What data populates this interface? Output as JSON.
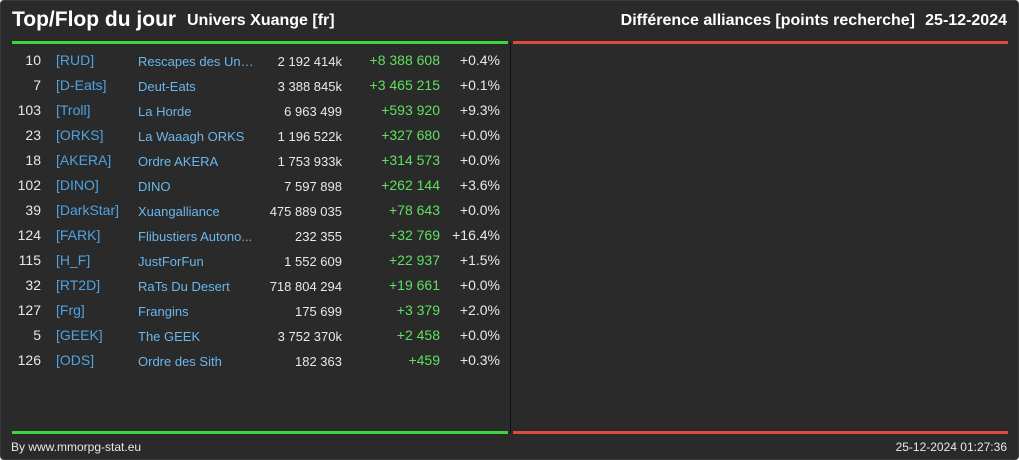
{
  "header": {
    "title": "Top/Flop du jour",
    "subtitle": "Univers Xuange [fr]",
    "category": "Différence alliances [points recherche]",
    "date": "25-12-2024"
  },
  "colors": {
    "top_accent": "#3dd63d",
    "flop_accent": "#e04a3c",
    "tag": "#4fa3e0",
    "gain": "#5fe05f"
  },
  "rows": [
    {
      "rank": "10",
      "tag": "[RUD]",
      "name": "Rescapes des Univ...",
      "points": "2 192 414k",
      "diff": "+8 388 608",
      "pct": "+0.4%"
    },
    {
      "rank": "7",
      "tag": "[D-Eats]",
      "name": "Deut-Eats",
      "points": "3 388 845k",
      "diff": "+3 465 215",
      "pct": "+0.1%"
    },
    {
      "rank": "103",
      "tag": "[Troll]",
      "name": "La Horde",
      "points": "6 963 499",
      "diff": "+593 920",
      "pct": "+9.3%"
    },
    {
      "rank": "23",
      "tag": "[ORKS]",
      "name": "La Waaagh ORKS",
      "points": "1 196 522k",
      "diff": "+327 680",
      "pct": "+0.0%"
    },
    {
      "rank": "18",
      "tag": "[AKERA]",
      "name": "Ordre AKERA",
      "points": "1 753 933k",
      "diff": "+314 573",
      "pct": "+0.0%"
    },
    {
      "rank": "102",
      "tag": "[DINO]",
      "name": "DINO",
      "points": "7 597 898",
      "diff": "+262 144",
      "pct": "+3.6%"
    },
    {
      "rank": "39",
      "tag": "[DarkStar]",
      "name": "Xuangalliance",
      "points": "475 889 035",
      "diff": "+78 643",
      "pct": "+0.0%"
    },
    {
      "rank": "124",
      "tag": "[FARK]",
      "name": "Flibustiers Autono...",
      "points": "232 355",
      "diff": "+32 769",
      "pct": "+16.4%"
    },
    {
      "rank": "115",
      "tag": "[H_F]",
      "name": "JustForFun",
      "points": "1 552 609",
      "diff": "+22 937",
      "pct": "+1.5%"
    },
    {
      "rank": "32",
      "tag": "[RT2D]",
      "name": "RaTs Du Desert",
      "points": "718 804 294",
      "diff": "+19 661",
      "pct": "+0.0%"
    },
    {
      "rank": "127",
      "tag": "[Frg]",
      "name": "Frangins",
      "points": "175 699",
      "diff": "+3 379",
      "pct": "+2.0%"
    },
    {
      "rank": "5",
      "tag": "[GEEK]",
      "name": "The GEEK",
      "points": "3 752 370k",
      "diff": "+2 458",
      "pct": "+0.0%"
    },
    {
      "rank": "126",
      "tag": "[ODS]",
      "name": "Ordre des Sith",
      "points": "182 363",
      "diff": "+459",
      "pct": "+0.3%"
    }
  ],
  "footer": {
    "credit": "By www.mmorpg-stat.eu",
    "timestamp": "25-12-2024 01:27:36"
  }
}
